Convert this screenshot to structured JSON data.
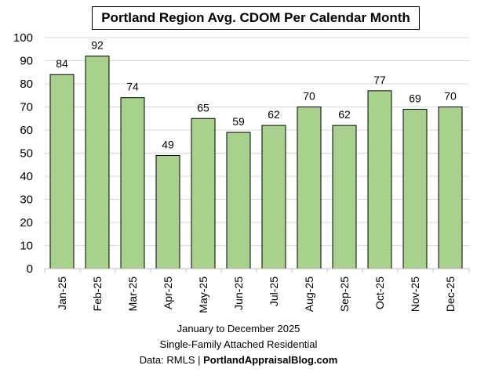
{
  "chart_data": {
    "type": "bar",
    "title": "Portland Region Avg. CDOM Per Calendar Month",
    "categories": [
      "Jan-25",
      "Feb-25",
      "Mar-25",
      "Apr-25",
      "May-25",
      "Jun-25",
      "Jul-25",
      "Aug-25",
      "Sep-25",
      "Oct-25",
      "Nov-25",
      "Dec-25"
    ],
    "values": [
      84,
      92,
      74,
      49,
      65,
      59,
      62,
      70,
      62,
      77,
      69,
      70
    ],
    "data_labels": [
      "84",
      "92",
      "74",
      "49",
      "65",
      "59",
      "62",
      "70",
      "62",
      "77",
      "69",
      "70"
    ],
    "ylim": [
      0,
      100
    ],
    "yticks": [
      0,
      10,
      20,
      30,
      40,
      50,
      60,
      70,
      80,
      90,
      100
    ],
    "grid": true,
    "legend": "none",
    "bar_color": "#a9d18e",
    "xlabel": "",
    "ylabel": ""
  },
  "footer": {
    "line1": "January to December 2025",
    "line2": "Single-Family Attached Residential",
    "line3_prefix": "Data: RMLS | ",
    "line3_bold": "PortlandAppraisalBlog.com"
  }
}
